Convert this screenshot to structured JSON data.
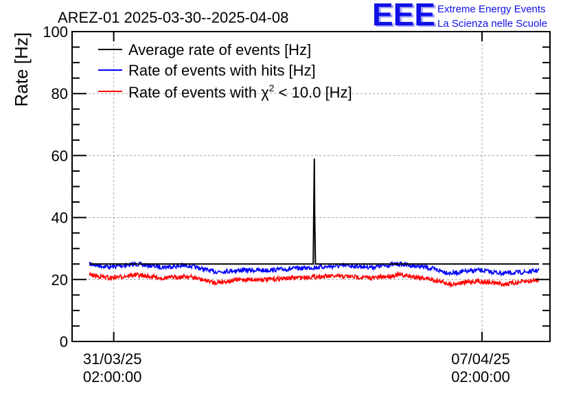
{
  "chart_data": {
    "type": "line",
    "title": "AREZ-01 2025-03-30--2025-04-08",
    "ylabel": "Rate [Hz]",
    "xlabel": "",
    "ylim": [
      0,
      100
    ],
    "y_ticks": [
      0,
      20,
      40,
      60,
      80,
      100
    ],
    "x_range": [
      "2025-03-30T07:00:00",
      "2025-04-08T09:00:00"
    ],
    "x_ticks": [
      {
        "value": "2025-03-31T02:00:00",
        "line1": "31/03/25",
        "line2": "02:00:00"
      },
      {
        "value": "2025-04-07T02:00:00",
        "line1": "07/04/25",
        "line2": "02:00:00"
      }
    ],
    "grid": true,
    "legend_position": "top-left",
    "series": [
      {
        "name": "Average rate of events [Hz]",
        "color": "#000000",
        "x": [
          "2025-03-30T15:00:00",
          "2025-04-03T21:00:00",
          "2025-04-03T21:30:00",
          "2025-04-03T21:40:00",
          "2025-04-03T22:00:00",
          "2025-04-08T04:00:00"
        ],
        "y": [
          25,
          25,
          59,
          41,
          25,
          25
        ]
      },
      {
        "name": "Rate of events with hits [Hz]",
        "color": "#0000ff",
        "x": [
          "2025-03-30T15:00:00",
          "2025-03-31T00:00:00",
          "2025-03-31T12:00:00",
          "2025-04-01T00:00:00",
          "2025-04-01T12:00:00",
          "2025-04-02T00:00:00",
          "2025-04-02T12:00:00",
          "2025-04-03T00:00:00",
          "2025-04-03T12:00:00",
          "2025-04-04T00:00:00",
          "2025-04-04T12:00:00",
          "2025-04-05T00:00:00",
          "2025-04-05T12:00:00",
          "2025-04-06T00:00:00",
          "2025-04-06T12:00:00",
          "2025-04-07T00:00:00",
          "2025-04-07T12:00:00",
          "2025-04-08T00:00:00",
          "2025-04-08T04:00:00"
        ],
        "y": [
          25,
          24,
          25,
          24,
          24.5,
          22.5,
          23,
          23,
          23.5,
          24,
          24.5,
          24,
          25,
          24,
          22,
          23,
          22,
          22.5,
          23
        ]
      },
      {
        "name": "Rate of events with χ² < 10.0 [Hz]",
        "color": "#ff0000",
        "x": [
          "2025-03-30T15:00:00",
          "2025-03-31T00:00:00",
          "2025-03-31T12:00:00",
          "2025-04-01T00:00:00",
          "2025-04-01T12:00:00",
          "2025-04-02T00:00:00",
          "2025-04-02T12:00:00",
          "2025-04-03T00:00:00",
          "2025-04-03T12:00:00",
          "2025-04-04T00:00:00",
          "2025-04-04T12:00:00",
          "2025-04-05T00:00:00",
          "2025-04-05T12:00:00",
          "2025-04-06T00:00:00",
          "2025-04-06T12:00:00",
          "2025-04-07T00:00:00",
          "2025-04-07T12:00:00",
          "2025-04-08T00:00:00",
          "2025-04-08T04:00:00"
        ],
        "y": [
          21.5,
          20.5,
          21.5,
          20.5,
          21,
          19,
          20,
          20,
          20.5,
          21,
          21,
          20.5,
          21.5,
          20.5,
          18.5,
          19.5,
          18.5,
          19.5,
          20
        ]
      }
    ]
  },
  "legend": {
    "items": [
      {
        "text": "Average rate of events [Hz]",
        "color": "#000000"
      },
      {
        "text": "Rate of events with hits [Hz]",
        "color": "#0000ff"
      },
      {
        "prefix": "Rate of events with χ",
        "sup": "2",
        "suffix": " < 10.0 [Hz]",
        "color": "#ff0000"
      }
    ]
  },
  "logo": {
    "letters": "EEE",
    "line1": "Extreme Energy Events",
    "line2": "La Scienza nelle Scuole",
    "color": "#1010e8"
  }
}
